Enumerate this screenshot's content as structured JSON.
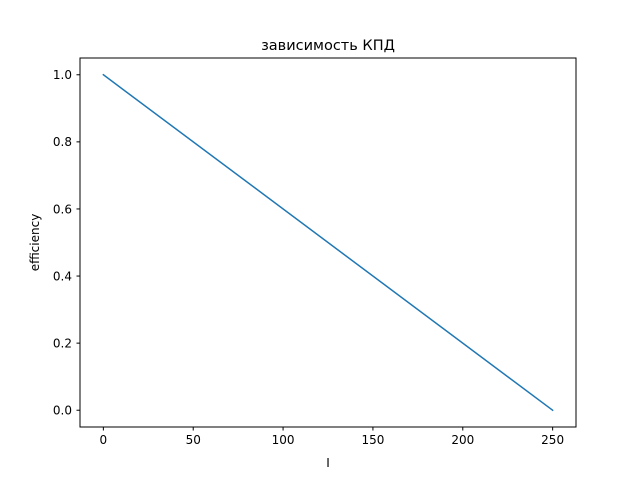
{
  "chart_data": {
    "type": "line",
    "title": "зависимость КПД",
    "xlabel": "I",
    "ylabel": "efficiency",
    "xlim": [
      -13,
      263
    ],
    "ylim": [
      -0.05,
      1.05
    ],
    "xticks": [
      0,
      50,
      100,
      150,
      200,
      250
    ],
    "yticks": [
      0.0,
      0.2,
      0.4,
      0.6,
      0.8,
      1.0
    ],
    "xtick_labels": [
      "0",
      "50",
      "100",
      "150",
      "200",
      "250"
    ],
    "ytick_labels": [
      "0.0",
      "0.2",
      "0.4",
      "0.6",
      "0.8",
      "1.0"
    ],
    "grid": false,
    "series": [
      {
        "color": "#1f77b4",
        "x": [
          0,
          250
        ],
        "y": [
          1.0,
          0.0
        ]
      }
    ]
  }
}
